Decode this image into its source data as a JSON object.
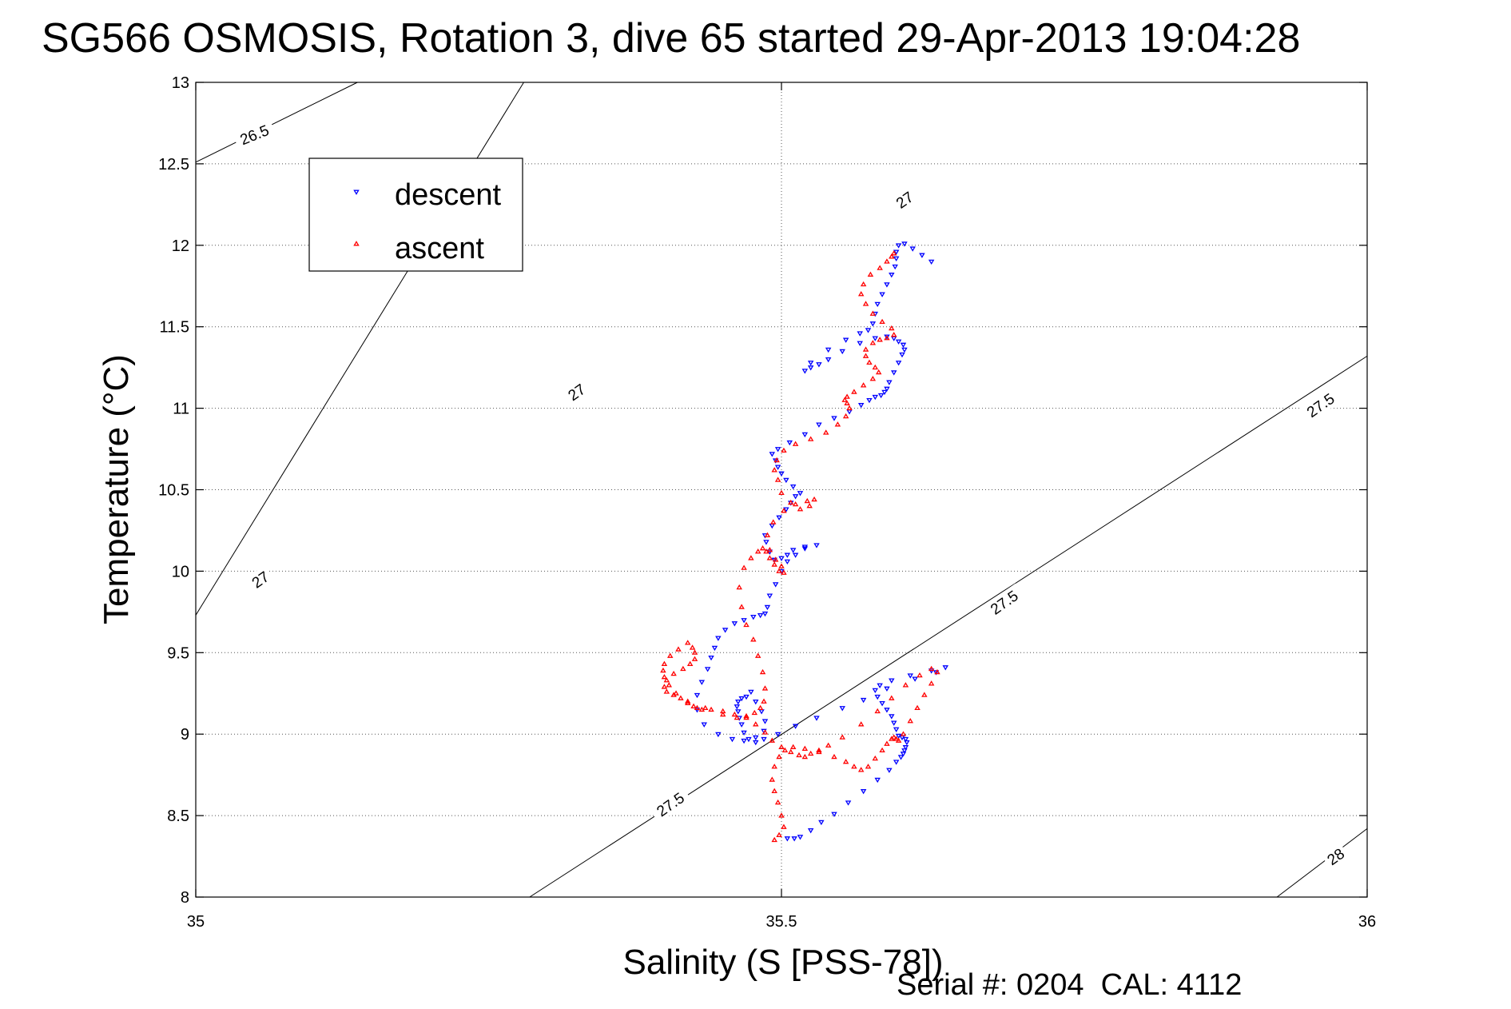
{
  "chart_data": {
    "type": "scatter",
    "title": "SG566 OSMOSIS, Rotation 3, dive 65 started 29-Apr-2013 19:04:28",
    "xlabel": "Salinity (S [PSS-78])",
    "ylabel": "Temperature (°C)",
    "xlim": [
      35,
      36
    ],
    "ylim": [
      8,
      13
    ],
    "xticks": [
      35,
      35.5,
      36
    ],
    "xtick_labels": [
      "35",
      "35.5",
      "36"
    ],
    "yticks": [
      8,
      8.5,
      9,
      9.5,
      10,
      10.5,
      11,
      11.5,
      12,
      12.5,
      13
    ],
    "ytick_labels": [
      "8",
      "8.5",
      "9",
      "9.5",
      "10",
      "10.5",
      "11",
      "11.5",
      "12",
      "12.5",
      "13"
    ],
    "grid": true,
    "grid_style": "dotted",
    "legend_position": "top-left",
    "footer": "Serial #: 0204  CAL: 4112",
    "density_contours": [
      {
        "level": "26.5",
        "x": [
          35.0,
          35.138
        ],
        "y": [
          12.51,
          13.0
        ],
        "labels": [
          {
            "text": "26.5",
            "x": 35.05,
            "y": 12.68,
            "angle": -22
          }
        ]
      },
      {
        "level": "27",
        "x": [
          35.0,
          35.28
        ],
        "y": [
          9.73,
          13.0
        ],
        "labels": [
          {
            "text": "27",
            "x": 35.055,
            "y": 9.95,
            "angle": -35
          },
          {
            "text": "27",
            "x": 35.325,
            "y": 11.1,
            "angle": -35
          },
          {
            "text": "27",
            "x": 35.605,
            "y": 12.28,
            "angle": -35
          }
        ]
      },
      {
        "level": "27.5",
        "x": [
          35.285,
          36.0
        ],
        "y": [
          8.0,
          11.32
        ],
        "labels": [
          {
            "text": "27.5",
            "x": 35.405,
            "y": 8.57,
            "angle": -35
          },
          {
            "text": "27.5",
            "x": 35.69,
            "y": 9.81,
            "angle": -35
          },
          {
            "text": "27.5",
            "x": 35.96,
            "y": 11.02,
            "angle": -35
          }
        ]
      },
      {
        "level": "28",
        "x": [
          35.923,
          36.0
        ],
        "y": [
          8.0,
          8.42
        ],
        "labels": [
          {
            "text": "28",
            "x": 35.973,
            "y": 8.25,
            "angle": -35
          }
        ]
      }
    ],
    "series": [
      {
        "name": "descent",
        "color": "#0000ff",
        "marker": "triangle-down",
        "x": [
          35.505,
          35.511,
          35.516,
          35.525,
          35.534,
          35.545,
          35.557,
          35.57,
          35.582,
          35.592,
          35.598,
          35.602,
          35.604,
          35.605,
          35.606,
          35.607,
          35.606,
          35.603,
          35.6,
          35.598,
          35.596,
          35.594,
          35.59,
          35.586,
          35.582,
          35.58,
          35.584,
          35.594,
          35.61,
          35.628,
          35.64,
          35.632,
          35.614,
          35.59,
          35.57,
          35.552,
          35.53,
          35.512,
          35.497,
          35.485,
          35.478,
          35.472,
          35.468,
          35.466,
          35.464,
          35.463,
          35.462,
          35.463,
          35.466,
          35.47,
          35.474,
          35.478,
          35.483,
          35.486,
          35.485,
          35.478,
          35.468,
          35.458,
          35.446,
          35.434,
          35.428,
          35.428,
          35.432,
          35.437,
          35.44,
          35.443,
          35.446,
          35.452,
          35.46,
          35.468,
          35.476,
          35.482,
          35.486,
          35.488,
          35.49,
          35.495,
          35.5,
          35.505,
          35.512,
          35.52,
          35.53,
          35.52,
          35.51,
          35.505,
          35.5,
          35.494,
          35.49,
          35.487,
          35.486,
          35.492,
          35.498,
          35.504,
          35.508,
          35.512,
          35.516,
          35.51,
          35.504,
          35.5,
          35.497,
          35.495,
          35.492,
          35.497,
          35.507,
          35.52,
          35.532,
          35.545,
          35.558,
          35.568,
          35.575,
          35.58,
          35.585,
          35.588,
          35.59,
          35.592,
          35.596,
          35.6,
          35.603,
          35.605,
          35.604,
          35.6,
          35.596,
          35.59,
          35.58,
          35.567,
          35.552,
          35.54,
          35.532,
          35.525,
          35.52,
          35.525,
          35.54,
          35.555,
          35.567,
          35.574,
          35.578,
          35.58,
          35.582,
          35.586,
          35.59,
          35.594,
          35.597,
          35.598,
          35.598,
          35.6,
          35.605,
          35.612,
          35.62,
          35.628
        ],
        "y": [
          8.36,
          8.36,
          8.37,
          8.41,
          8.46,
          8.51,
          8.58,
          8.65,
          8.72,
          8.78,
          8.83,
          8.86,
          8.88,
          8.9,
          8.92,
          8.95,
          8.97,
          8.98,
          8.99,
          9.03,
          9.07,
          9.11,
          9.15,
          9.19,
          9.23,
          9.27,
          9.3,
          9.33,
          9.36,
          9.39,
          9.41,
          9.38,
          9.34,
          9.28,
          9.21,
          9.16,
          9.1,
          9.05,
          9.0,
          8.97,
          8.95,
          8.97,
          9.01,
          9.06,
          9.1,
          9.14,
          9.17,
          9.2,
          9.22,
          9.23,
          9.26,
          9.2,
          9.14,
          9.08,
          9.02,
          8.98,
          8.96,
          8.97,
          9.0,
          9.06,
          9.15,
          9.24,
          9.32,
          9.4,
          9.47,
          9.53,
          9.59,
          9.64,
          9.68,
          9.7,
          9.72,
          9.73,
          9.74,
          9.78,
          9.85,
          9.92,
          10.0,
          10.06,
          10.1,
          10.14,
          10.16,
          10.15,
          10.13,
          10.1,
          10.08,
          10.07,
          10.12,
          10.18,
          10.22,
          10.28,
          10.33,
          10.38,
          10.42,
          10.46,
          10.48,
          10.52,
          10.56,
          10.6,
          10.64,
          10.68,
          10.72,
          10.75,
          10.79,
          10.84,
          10.9,
          10.94,
          10.98,
          11.02,
          11.05,
          11.07,
          11.08,
          11.1,
          11.12,
          11.16,
          11.22,
          11.28,
          11.33,
          11.36,
          11.39,
          11.41,
          11.43,
          11.44,
          11.43,
          11.4,
          11.35,
          11.3,
          11.27,
          11.25,
          11.23,
          11.28,
          11.36,
          11.42,
          11.46,
          11.48,
          11.52,
          11.58,
          11.64,
          11.7,
          11.76,
          11.82,
          11.87,
          11.92,
          11.96,
          12.0,
          12.01,
          11.98,
          11.94,
          11.9
        ]
      },
      {
        "name": "ascent",
        "color": "#ff0000",
        "marker": "triangle-up",
        "x": [
          35.494,
          35.498,
          35.502,
          35.5,
          35.497,
          35.494,
          35.492,
          35.494,
          35.498,
          35.503,
          35.51,
          35.52,
          35.532,
          35.545,
          35.555,
          35.562,
          35.568,
          35.574,
          35.58,
          35.586,
          35.59,
          35.594,
          35.596,
          35.598,
          35.6,
          35.604,
          35.61,
          35.616,
          35.622,
          35.628,
          35.633,
          35.628,
          35.618,
          35.606,
          35.594,
          35.582,
          35.568,
          35.552,
          35.54,
          35.532,
          35.525,
          35.52,
          35.515,
          35.508,
          35.5,
          35.492,
          35.486,
          35.478,
          35.47,
          35.46,
          35.45,
          35.44,
          35.432,
          35.428,
          35.425,
          35.42,
          35.414,
          35.408,
          35.402,
          35.4,
          35.402,
          35.408,
          35.416,
          35.422,
          35.426,
          35.426,
          35.424,
          35.42,
          35.412,
          35.405,
          35.4,
          35.399,
          35.4,
          35.404,
          35.41,
          35.42,
          35.435,
          35.45,
          35.462,
          35.47,
          35.477,
          35.482,
          35.485,
          35.486,
          35.484,
          35.48,
          35.476,
          35.47,
          35.466,
          35.464,
          35.468,
          35.474,
          35.48,
          35.484,
          35.487,
          35.49,
          35.494,
          35.498,
          35.502,
          35.5,
          35.495,
          35.49,
          35.488,
          35.493,
          35.502,
          35.512,
          35.522,
          35.528,
          35.524,
          35.516,
          35.508,
          35.5,
          35.497,
          35.494,
          35.496,
          35.502,
          35.512,
          35.525,
          35.538,
          35.548,
          35.555,
          35.558,
          35.556,
          35.554,
          35.556,
          35.562,
          35.57,
          35.578,
          35.583,
          35.58,
          35.575,
          35.572,
          35.572,
          35.578,
          35.584,
          35.59,
          35.596,
          35.594,
          35.586,
          35.578,
          35.572,
          35.568,
          35.57,
          35.576,
          35.584,
          35.59,
          35.594,
          35.596
        ],
        "y": [
          8.35,
          8.38,
          8.43,
          8.5,
          8.58,
          8.65,
          8.72,
          8.8,
          8.86,
          8.9,
          8.92,
          8.91,
          8.89,
          8.86,
          8.83,
          8.8,
          8.78,
          8.8,
          8.85,
          8.9,
          8.94,
          8.97,
          8.98,
          8.97,
          8.96,
          9.0,
          9.08,
          9.16,
          9.24,
          9.31,
          9.38,
          9.4,
          9.36,
          9.3,
          9.22,
          9.14,
          9.06,
          8.98,
          8.93,
          8.9,
          8.88,
          8.86,
          8.87,
          8.89,
          8.92,
          8.96,
          9.01,
          9.06,
          9.1,
          9.12,
          9.14,
          9.15,
          9.15,
          9.16,
          9.17,
          9.19,
          9.22,
          9.24,
          9.26,
          9.29,
          9.33,
          9.37,
          9.4,
          9.43,
          9.46,
          9.5,
          9.53,
          9.56,
          9.52,
          9.48,
          9.43,
          9.39,
          9.35,
          9.3,
          9.25,
          9.2,
          9.16,
          9.12,
          9.1,
          9.11,
          9.13,
          9.16,
          9.2,
          9.28,
          9.38,
          9.48,
          9.58,
          9.67,
          9.78,
          9.9,
          10.02,
          10.08,
          10.12,
          10.14,
          10.12,
          10.08,
          10.04,
          10.0,
          9.99,
          10.03,
          10.07,
          10.13,
          10.22,
          10.3,
          10.37,
          10.41,
          10.43,
          10.44,
          10.4,
          10.38,
          10.42,
          10.48,
          10.56,
          10.62,
          10.68,
          10.74,
          10.78,
          10.81,
          10.85,
          10.9,
          10.95,
          11.0,
          11.03,
          11.05,
          11.07,
          11.1,
          11.14,
          11.18,
          11.22,
          11.25,
          11.28,
          11.32,
          11.36,
          11.4,
          11.42,
          11.43,
          11.45,
          11.49,
          11.53,
          11.58,
          11.64,
          11.7,
          11.76,
          11.82,
          11.86,
          11.9,
          11.93,
          11.95
        ]
      }
    ]
  }
}
